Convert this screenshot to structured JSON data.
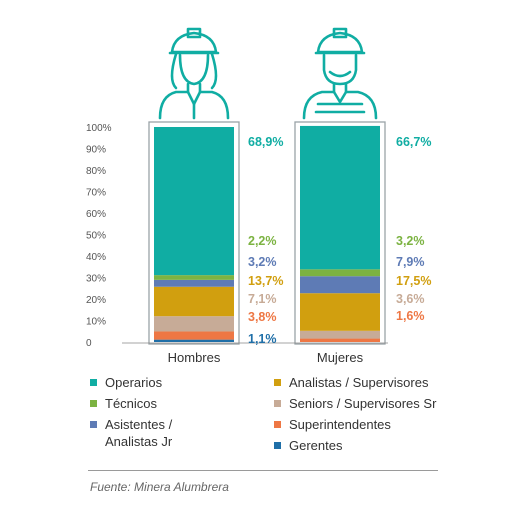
{
  "chart_data": {
    "type": "bar",
    "stacked": true,
    "categories": [
      "Hombres",
      "Mujeres"
    ],
    "y_tick_labels": [
      "0",
      "10%",
      "20%",
      "30%",
      "40%",
      "50%",
      "60%",
      "70%",
      "80%",
      "90%",
      "100%"
    ],
    "ylim": [
      0,
      100
    ],
    "legend_position": "bottom",
    "series": [
      {
        "name": "Gerentes",
        "color": "#1f6fa8",
        "values": [
          1.1,
          0
        ],
        "labels": [
          "1,1%",
          ""
        ]
      },
      {
        "name": "Superintendentes",
        "color": "#ee7744",
        "values": [
          3.8,
          1.6
        ],
        "labels": [
          "3,8%",
          "1,6%"
        ]
      },
      {
        "name": "Seniors / Supervisores Sr",
        "color": "#c7ab97",
        "values": [
          7.1,
          3.6
        ],
        "labels": [
          "7,1%",
          "3,6%"
        ]
      },
      {
        "name": "Analistas / Supervisores",
        "color": "#d19f0f",
        "values": [
          13.7,
          17.5
        ],
        "labels": [
          "13,7%",
          "17,5%"
        ]
      },
      {
        "name": "Asistentes / Analistas Jr",
        "color": "#5e7bb5",
        "values": [
          3.2,
          7.9
        ],
        "labels": [
          "3,2%",
          "7,9%"
        ]
      },
      {
        "name": "Técnicos",
        "color": "#7cb342",
        "values": [
          2.2,
          3.2
        ],
        "labels": [
          "2,2%",
          "3,2%"
        ]
      },
      {
        "name": "Operarios",
        "color": "#10ada3",
        "values": [
          68.9,
          66.7
        ],
        "labels": [
          "68,9%",
          "66,7%"
        ]
      }
    ]
  },
  "legend": [
    {
      "label": "Operarios",
      "color": "#10ada3"
    },
    {
      "label": "Analistas / Supervisores",
      "color": "#d19f0f"
    },
    {
      "label": "Técnicos",
      "color": "#7cb342"
    },
    {
      "label": "Seniors / Supervisores Sr",
      "color": "#c7ab97"
    },
    {
      "label": "Asistentes /",
      "label2": "Analistas Jr",
      "color": "#5e7bb5"
    },
    {
      "label": "Superintendentes",
      "color": "#ee7744"
    },
    {
      "label": "Gerentes",
      "color": "#1f6fa8"
    }
  ],
  "source": "Fuente: Minera Alumbrera",
  "colors": {
    "accent": "#10ada3",
    "frame": "#9aa3a8",
    "axis_text": "#555555"
  },
  "icons": [
    "female-worker-icon",
    "male-worker-icon"
  ]
}
